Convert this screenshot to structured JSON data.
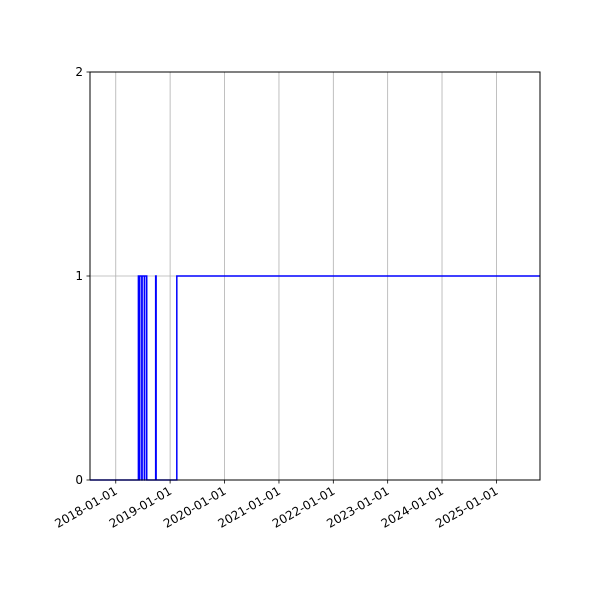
{
  "chart_data": {
    "type": "line",
    "title": "",
    "xlabel": "",
    "ylabel": "",
    "x_type": "date",
    "xlim": [
      "2017-07-12",
      "2025-10-20"
    ],
    "ylim": [
      0,
      2
    ],
    "yticks": [
      0,
      1,
      2
    ],
    "ytick_labels": [
      "0",
      "1",
      "2"
    ],
    "xticks": [
      "2018-01-01",
      "2019-01-01",
      "2020-01-01",
      "2021-01-01",
      "2022-01-01",
      "2023-01-01",
      "2024-01-01",
      "2025-01-01"
    ],
    "grid": "x-and-y-major",
    "line_color": "#0000ff",
    "series": [
      {
        "points": [
          [
            "2017-07-12",
            0
          ],
          [
            "2018-06-02",
            0
          ],
          [
            "2018-06-02",
            1
          ],
          [
            "2018-06-08",
            1
          ],
          [
            "2018-06-08",
            0
          ],
          [
            "2018-06-11",
            0
          ],
          [
            "2018-06-11",
            1
          ],
          [
            "2018-06-25",
            1
          ],
          [
            "2018-06-25",
            0
          ],
          [
            "2018-06-27",
            0
          ],
          [
            "2018-06-27",
            1
          ],
          [
            "2018-07-12",
            1
          ],
          [
            "2018-07-12",
            0
          ],
          [
            "2018-07-14",
            0
          ],
          [
            "2018-07-14",
            1
          ],
          [
            "2018-07-28",
            1
          ],
          [
            "2018-07-28",
            0
          ],
          [
            "2018-09-26",
            0
          ],
          [
            "2018-09-26",
            1
          ],
          [
            "2018-09-29",
            1
          ],
          [
            "2018-09-29",
            0
          ],
          [
            "2019-02-15",
            0
          ],
          [
            "2019-02-15",
            1
          ],
          [
            "2025-10-20",
            1
          ]
        ]
      }
    ]
  }
}
